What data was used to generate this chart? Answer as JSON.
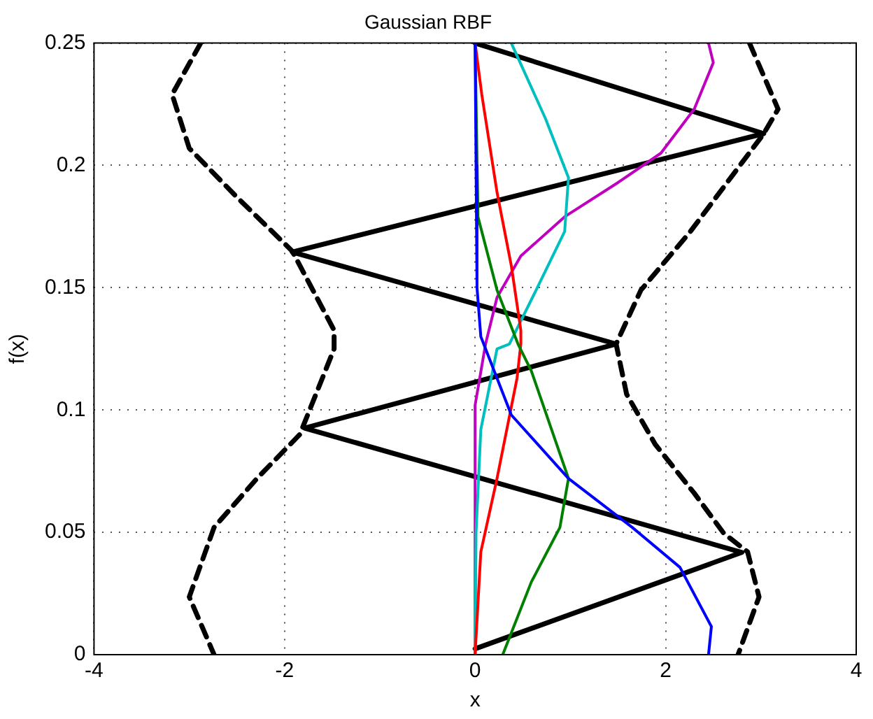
{
  "chart_data": {
    "type": "line",
    "title": "Gaussian RBF",
    "xlabel": "x",
    "ylabel": "f(x)",
    "xlim": [
      -4,
      4
    ],
    "xticks": [
      -4,
      -2,
      0,
      2,
      4
    ],
    "ylim": [
      0,
      0.25
    ],
    "yticks": [
      0,
      0.05,
      0.1,
      0.15,
      0.2,
      0.25
    ],
    "grid": true,
    "legend": false,
    "marker": "none",
    "series": [
      {
        "color": "#0000ff",
        "x": [
          0,
          0.01,
          0.02,
          0.06,
          0.38,
          0.98,
          1.65,
          2.15,
          2.48,
          2.45
        ],
        "values": [
          0.25,
          0.2,
          0.15,
          0.13,
          0.098,
          0.072,
          0.052,
          0.0357,
          0.0115,
          0
        ]
      },
      {
        "color": "#008000",
        "x": [
          0,
          0.03,
          0.23,
          0.45,
          0.59,
          0.98,
          0.89,
          0.59,
          0.29
        ],
        "values": [
          0.25,
          0.179,
          0.149,
          0.127,
          0.116,
          0.072,
          0.052,
          0.0297,
          0
        ]
      },
      {
        "color": "#ff0000",
        "x": [
          0,
          0.07,
          0.23,
          0.38,
          0.48,
          0.48,
          0.44,
          0.23,
          0.06,
          0
        ],
        "values": [
          0.25,
          0.229,
          0.189,
          0.159,
          0.1326,
          0.127,
          0.113,
          0.072,
          0.042,
          0
        ]
      },
      {
        "color": "#00bfbf",
        "x": [
          0.38,
          0.74,
          0.98,
          0.94,
          0.64,
          0.36,
          0.23,
          0.06,
          0.01,
          0
        ],
        "values": [
          0.25,
          0.219,
          0.195,
          0.173,
          0.149,
          0.127,
          0.125,
          0.092,
          0.05,
          0
        ]
      },
      {
        "color": "#bf00bf",
        "x": [
          2.45,
          2.5,
          2.3,
          1.95,
          1.5,
          0.94,
          0.48,
          0.23,
          0.11,
          0,
          0
        ],
        "values": [
          0.25,
          0.242,
          0.223,
          0.205,
          0.193,
          0.179,
          0.163,
          0.146,
          0.127,
          0.102,
          0
        ]
      },
      {
        "color": "#000000",
        "line_style": "dashed",
        "x": [
          2.88,
          3.18,
          3.03,
          2.26,
          1.74,
          1.48,
          1.59,
          1.89,
          2.3,
          2.61,
          2.86,
          2.98,
          2.76
        ],
        "values": [
          0.25,
          0.223,
          0.213,
          0.173,
          0.149,
          0.127,
          0.1065,
          0.086,
          0.066,
          0.0496,
          0.042,
          0.0236,
          0
        ]
      },
      {
        "color": "#000000",
        "line_style": "dashed",
        "x": [
          -2.88,
          -3.18,
          -3.0,
          -2.5,
          -1.92,
          -1.48,
          -1.48,
          -1.84,
          -2.29,
          -2.74,
          -3.0,
          -2.74
        ],
        "values": [
          0.25,
          0.229,
          0.207,
          0.187,
          0.165,
          0.1326,
          0.125,
          0.09,
          0.072,
          0.052,
          0.0236,
          0
        ]
      },
      {
        "color": "#000000",
        "line_style": "solid",
        "x": [
          0,
          3.03,
          -1.92,
          1.48,
          -1.79,
          2.8,
          0
        ],
        "values": [
          0.25,
          0.213,
          0.1646,
          0.127,
          0.0926,
          0.0418,
          0.0024
        ]
      }
    ]
  }
}
